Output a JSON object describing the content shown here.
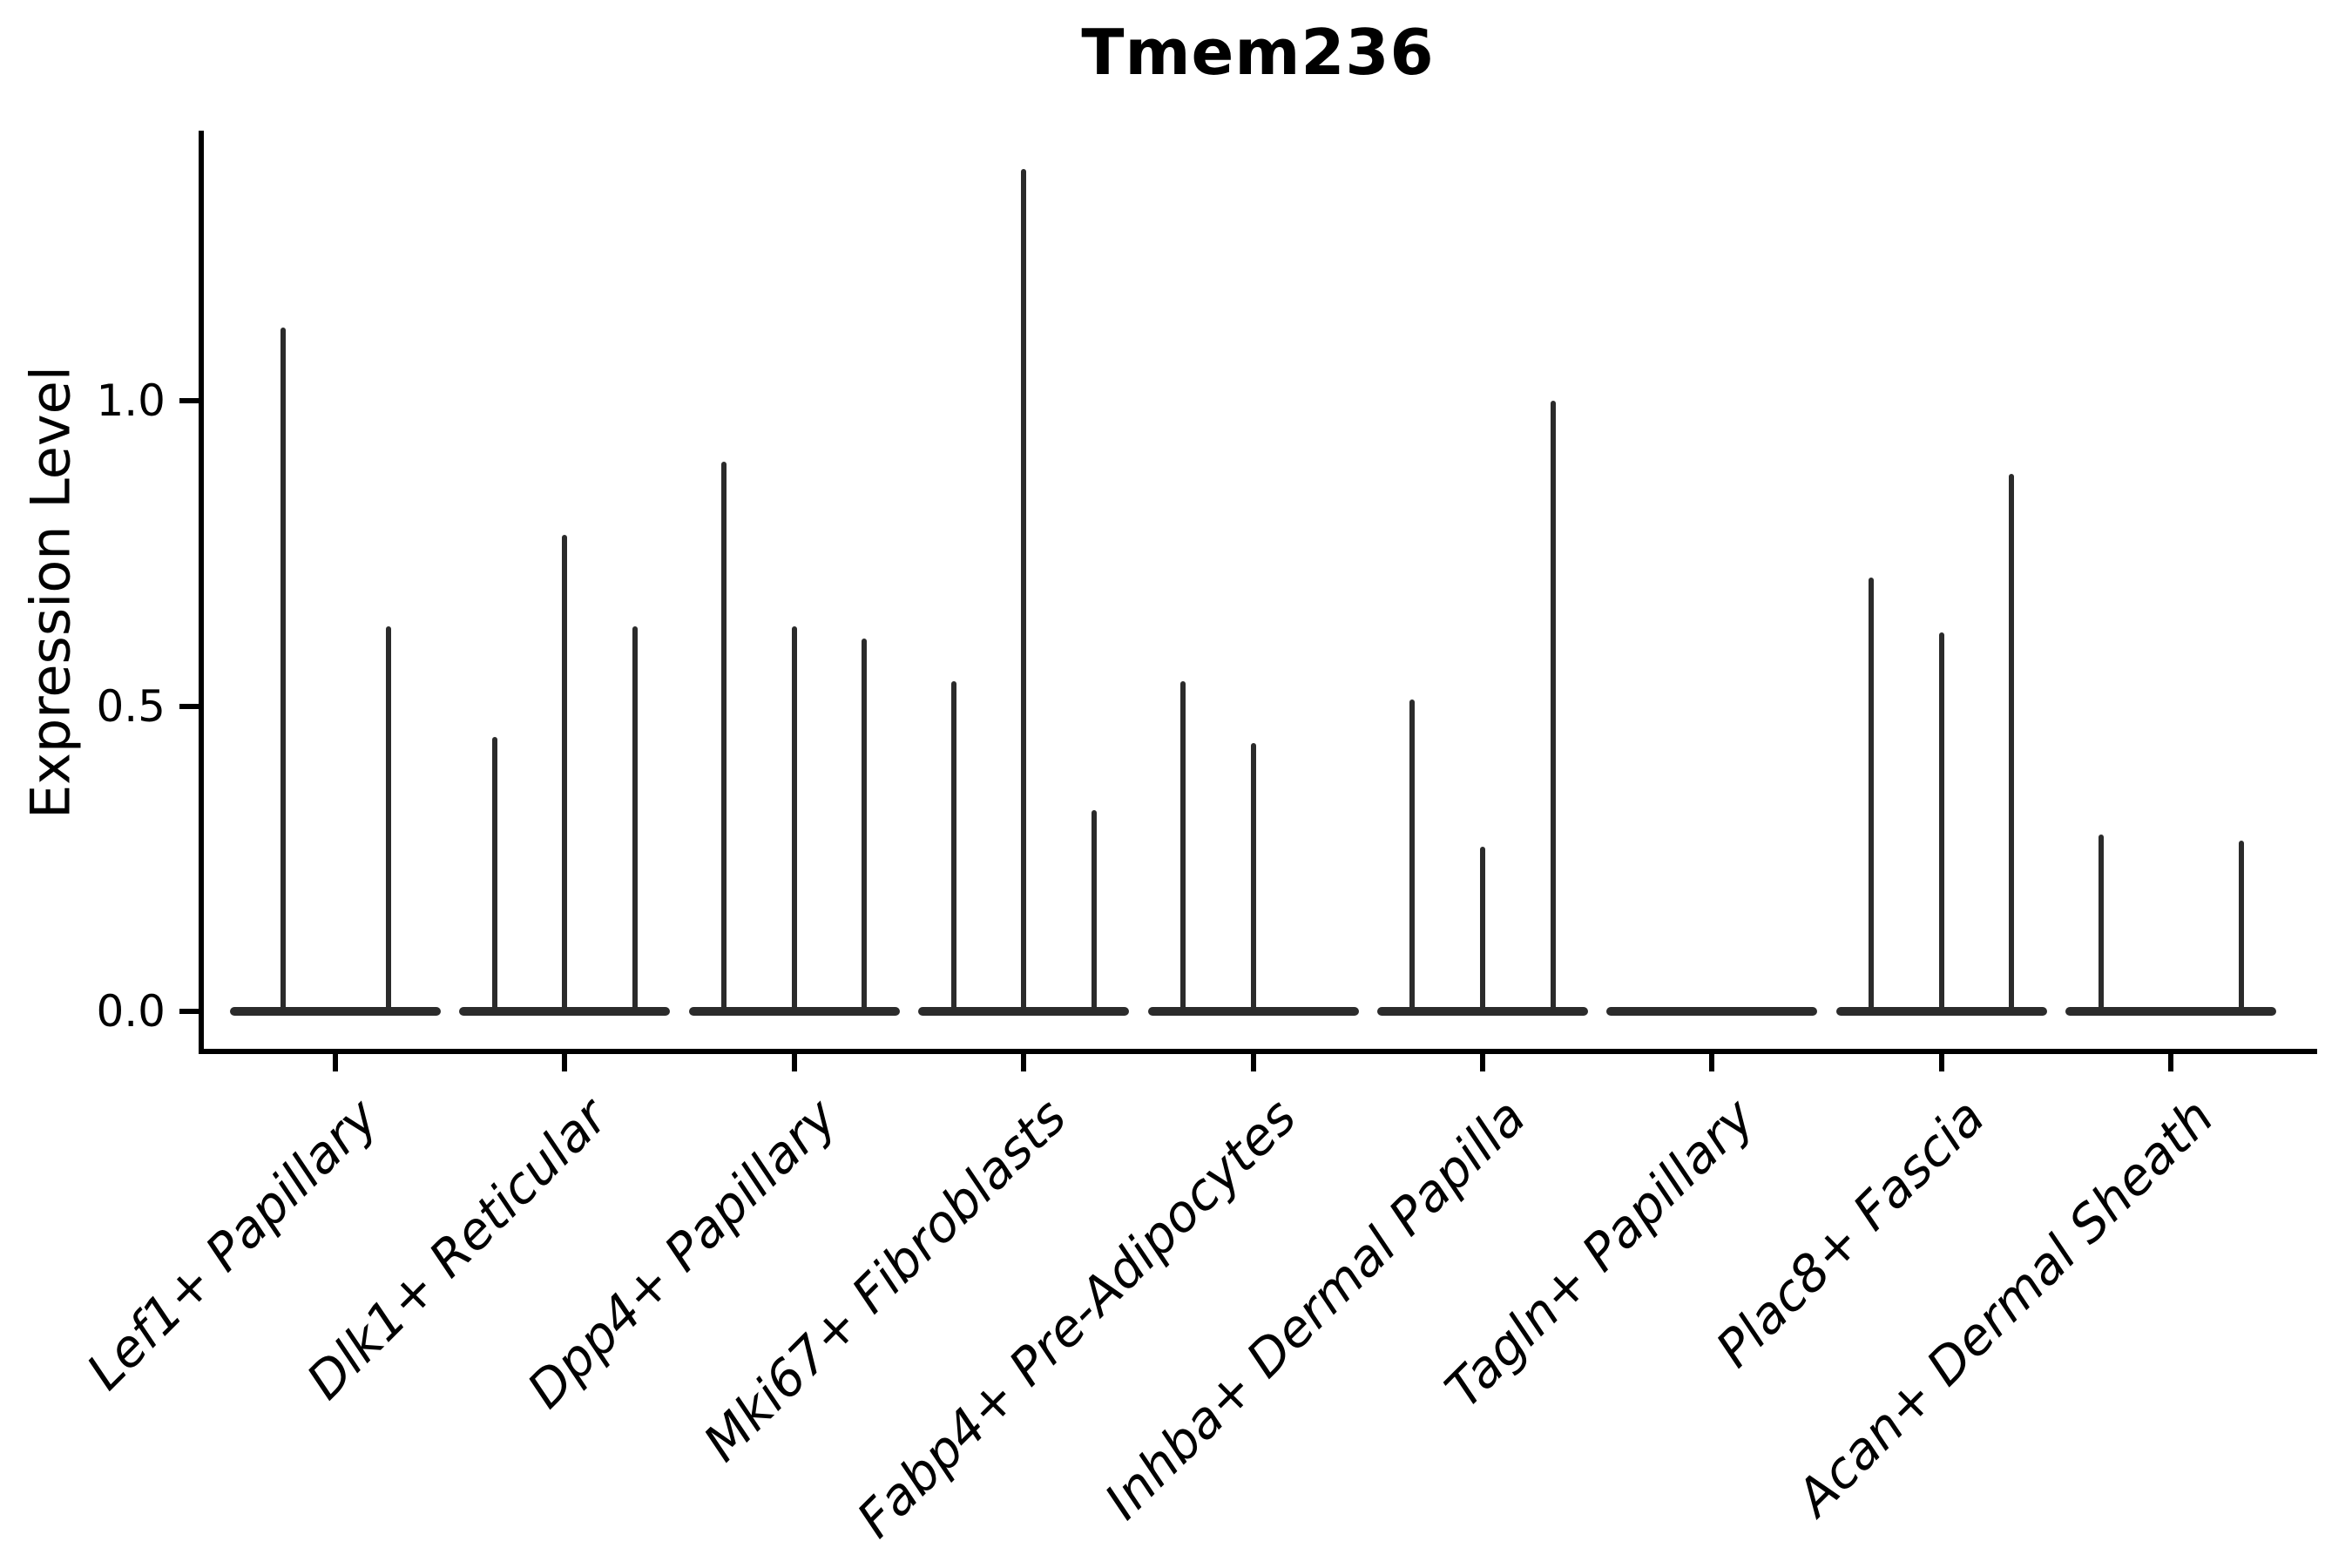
{
  "chart_data": {
    "type": "violin",
    "title": "Tmem236",
    "ylabel": "Expression Level",
    "xlabel": "",
    "ylim": [
      -0.07,
      1.44
    ],
    "grid": false,
    "legend": null,
    "background_color": "#ffffff",
    "violin_color": "#2b2b2b",
    "axis_color": "#000000",
    "yticks": [
      {
        "label": "0.0",
        "value": 0.0
      },
      {
        "label": "0.5",
        "value": 0.5
      },
      {
        "label": "1.0",
        "value": 1.0
      }
    ],
    "categories": [
      "Lef1+ Papillary",
      "Dlk1+ Reticular",
      "Dpp4+ Papillary",
      "Mki67+ Fibroblasts",
      "Fabp4+ Pre-Adipocytes",
      "Inhba+ Dermal Papilla",
      "Tagln+ Papillary",
      "Plac8+ Fascia",
      "Acan+ Dermal Sheath"
    ],
    "groups": [
      {
        "label": "Lef1+ Papillary",
        "violin_max_expression": [
          1.12,
          0.63
        ]
      },
      {
        "label": "Dlk1+ Reticular",
        "violin_max_expression": [
          0.45,
          0.78,
          0.63
        ]
      },
      {
        "label": "Dpp4+ Papillary",
        "violin_max_expression": [
          0.9,
          0.63,
          0.61
        ]
      },
      {
        "label": "Mki67+ Fibroblasts",
        "violin_max_expression": [
          0.54,
          1.38,
          0.33
        ]
      },
      {
        "label": "Fabp4+ Pre-Adipocytes",
        "violin_max_expression": [
          0.54,
          0.44,
          0
        ]
      },
      {
        "label": "Inhba+ Dermal Papilla",
        "violin_max_expression": [
          0.51,
          0.27,
          1.0
        ]
      },
      {
        "label": "Tagln+ Papillary",
        "violin_max_expression": [
          0,
          0,
          0
        ]
      },
      {
        "label": "Plac8+ Fascia",
        "violin_max_expression": [
          0.71,
          0.62,
          0.88
        ]
      },
      {
        "label": "Acan+ Dermal Sheath",
        "violin_max_expression": [
          0.29,
          0,
          0.28
        ]
      }
    ]
  }
}
